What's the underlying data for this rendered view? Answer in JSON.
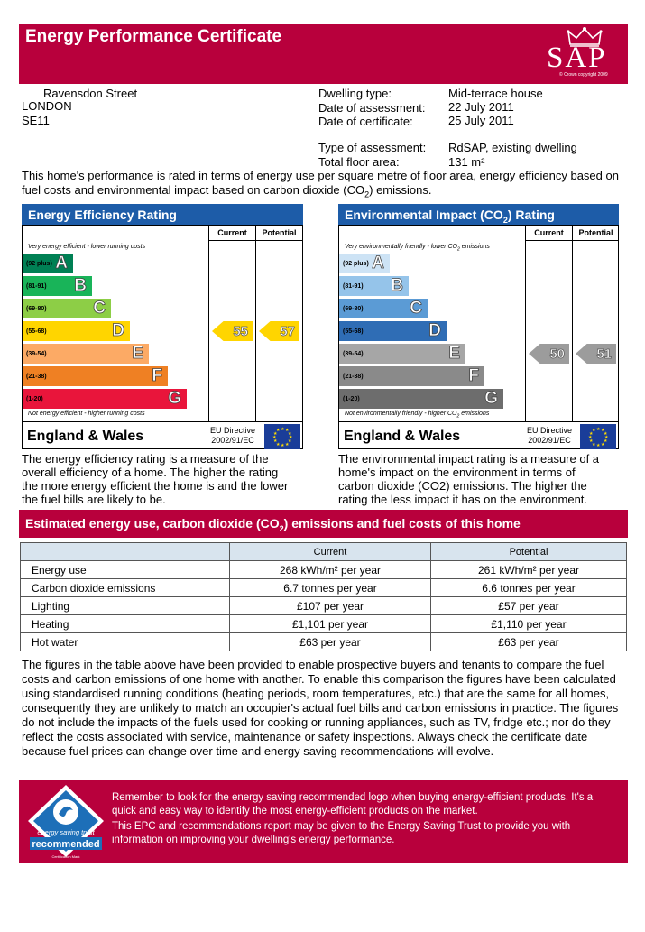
{
  "header": {
    "title": "Energy Performance Certificate",
    "logo_text": "SAP",
    "logo_copyright": "© Crown copyright 2009"
  },
  "address": {
    "line1": "Ravensdon Street",
    "line2": "LONDON",
    "line3": "SE11"
  },
  "details": [
    {
      "label": "Dwelling type:",
      "value": "Mid-terrace house"
    },
    {
      "label": "Date of assessment:",
      "value": "22 July 2011"
    },
    {
      "label": "Date of certificate:",
      "value": "25 July 2011"
    },
    {
      "label": "Type of assessment:",
      "value": "RdSAP, existing dwelling"
    },
    {
      "label": "Total floor area:",
      "value": "131 m²"
    }
  ],
  "intro": {
    "text": "This home's performance is rated in terms of energy use per square metre of floor area, energy efficiency based on fuel costs and environmental impact based on carbon dioxide (CO",
    "sub": "2",
    "tail": ") emissions."
  },
  "efficiency": {
    "title": "Energy Efficiency Rating",
    "col_current": "Current",
    "col_potential": "Potential",
    "top_label": "Very energy efficient - lower running costs",
    "bottom_label": "Not energy efficient - higher running costs",
    "bands": [
      {
        "range": "(92 plus)",
        "letter": "A",
        "color": "#008054"
      },
      {
        "range": "(81-91)",
        "letter": "B",
        "color": "#19b459"
      },
      {
        "range": "(69-80)",
        "letter": "C",
        "color": "#8dce46"
      },
      {
        "range": "(55-68)",
        "letter": "D",
        "color": "#ffd500"
      },
      {
        "range": "(39-54)",
        "letter": "E",
        "color": "#fcaa65"
      },
      {
        "range": "(21-38)",
        "letter": "F",
        "color": "#ef8023"
      },
      {
        "range": "(1-20)",
        "letter": "G",
        "color": "#e9153b"
      }
    ],
    "current": "55",
    "potential": "57",
    "arrow_color": "#ffd500",
    "footer": "England & Wales",
    "eu": "EU Directive",
    "eu_code": "2002/91/EC"
  },
  "environment": {
    "title": "Environmental Impact (CO",
    "title_sub": "2",
    "title_tail": ") Rating",
    "col_current": "Current",
    "col_potential": "Potential",
    "top_label": "Very environmentally friendly - lower CO",
    "top_sub": "2",
    "top_tail": " emissions",
    "bottom_label": "Not environmentally friendly - higher CO",
    "bottom_sub": "2",
    "bottom_tail": " emissions",
    "bands": [
      {
        "range": "(92 plus)",
        "letter": "A",
        "color": "#cde3f5"
      },
      {
        "range": "(81-91)",
        "letter": "B",
        "color": "#95c4ea"
      },
      {
        "range": "(69-80)",
        "letter": "C",
        "color": "#5b9bd5"
      },
      {
        "range": "(55-68)",
        "letter": "D",
        "color": "#2f6db5"
      },
      {
        "range": "(39-54)",
        "letter": "E",
        "color": "#a6a6a6"
      },
      {
        "range": "(21-38)",
        "letter": "F",
        "color": "#8a8a8a"
      },
      {
        "range": "(1-20)",
        "letter": "G",
        "color": "#6d6d6d"
      }
    ],
    "current": "50",
    "potential": "51",
    "arrow_color": "#9c9c9c",
    "footer": "England & Wales",
    "eu": "EU Directive",
    "eu_code": "2002/91/EC"
  },
  "efficiency_desc": "The energy efficiency rating is a measure of the overall efficiency of a home. The higher the rating the more energy efficient the home is and the lower the fuel bills are likely to be.",
  "environment_desc": "The environmental impact rating is a measure of a home's impact on the environment in terms of carbon dioxide (CO2) emissions. The higher the rating the less impact it has on the environment.",
  "estimate": {
    "title": "Estimated energy use, carbon dioxide (CO",
    "title_sub": "2",
    "title_tail": ") emissions and fuel costs of this home",
    "col_current": "Current",
    "col_potential": "Potential",
    "rows": [
      {
        "label": "Energy use",
        "current": "268 kWh/m² per year",
        "potential": "261 kWh/m² per year"
      },
      {
        "label": "Carbon dioxide emissions",
        "current": "6.7 tonnes per year",
        "potential": "6.6 tonnes per year"
      },
      {
        "label": "Lighting",
        "current": "£107 per year",
        "potential": "£57 per year"
      },
      {
        "label": "Heating",
        "current": "£1,101 per year",
        "potential": "£1,110 per year"
      },
      {
        "label": "Hot water",
        "current": "£63 per year",
        "potential": "£63 per year"
      }
    ]
  },
  "paragraph": "The figures in the table above have been provided to enable prospective buyers and tenants to compare the fuel costs and carbon emissions of one home with another. To enable this comparison the figures have been calculated using standardised running conditions (heating periods, room temperatures, etc.) that are the same for all homes, consequently they are unlikely to match an occupier's actual fuel bills and carbon emissions in practice. The figures do not include the impacts of the fuels used for cooking or running appliances, such as TV, fridge etc.; nor do they reflect the costs associated with service, maintenance or safety inspections. Always check the certificate date because fuel prices can change over time and energy saving recommendations will evolve.",
  "promo": {
    "text1": "Remember to look for the energy saving recommended logo when buying energy-efficient products. It's a quick and easy way to identify the most energy-efficient products on the market.",
    "text2": "This EPC and recommendations report may be given to the Energy Saving Trust to provide you with information on improving your dwelling's energy performance.",
    "logo_top": "energy saving trust",
    "logo_bottom": "recommended",
    "logo_mark": "Certification Mark"
  }
}
